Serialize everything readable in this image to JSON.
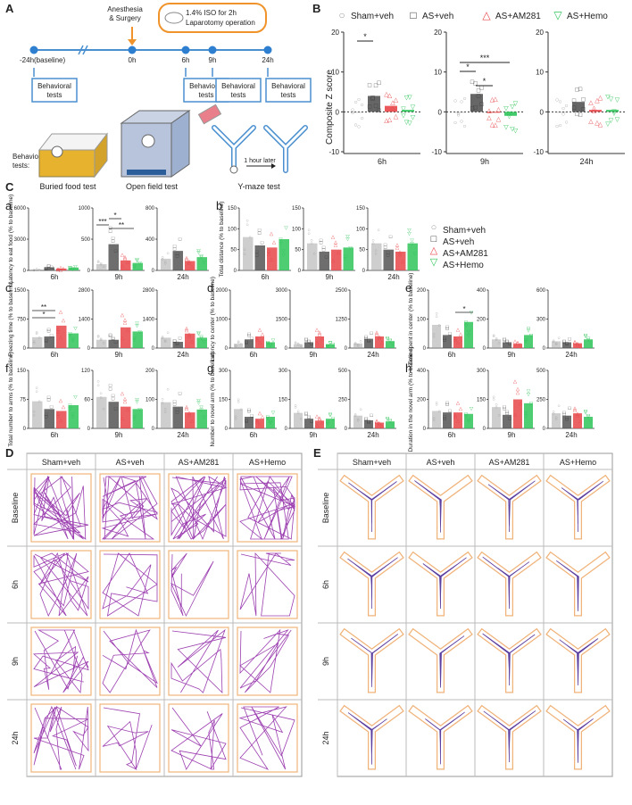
{
  "panel_letters": {
    "A": "A",
    "B": "B",
    "C": "C",
    "D": "D",
    "E": "E"
  },
  "timeline": {
    "points": [
      "-24h(baseline)",
      "0h",
      "6h",
      "9h",
      "24h"
    ],
    "anesthesia_label": "Anesthesia\n& Surgery",
    "iso_box": "1.4% ISO for 2h\nLaparotomy operation",
    "behavioral_tests": "Behavioral\ntests",
    "tests_label": "Behavioral\ntests:",
    "tests": [
      "Buried food test",
      "Open field test",
      "Y-maze test"
    ],
    "hour_later": "1 hour later"
  },
  "legend": {
    "groups": [
      "Sham+veh",
      "AS+veh",
      "AS+AM281",
      "AS+Hemo"
    ],
    "colors": [
      "#9e9e9e",
      "#444444",
      "#e8464a",
      "#2fc45a"
    ],
    "symbols": [
      "○",
      "□",
      "△",
      "▽"
    ]
  },
  "subpanel_letters": [
    "a",
    "b",
    "c",
    "d",
    "e",
    "f",
    "g",
    "h"
  ],
  "chart_data": [
    {
      "id": "B",
      "type": "bar",
      "ylabel": "Composite Z score",
      "ylim": [
        -10,
        20
      ],
      "yticks": [
        -10,
        0,
        10,
        20
      ],
      "categories": [
        "6h",
        "9h",
        "24h"
      ],
      "series": [
        {
          "name": "Sham+veh",
          "values": [
            0,
            0,
            0
          ]
        },
        {
          "name": "AS+veh",
          "values": [
            4,
            4.5,
            2.5
          ]
        },
        {
          "name": "AS+AM281",
          "values": [
            1.5,
            0,
            0.5
          ]
        },
        {
          "name": "AS+Hemo",
          "values": [
            0.5,
            -1,
            0.5
          ]
        }
      ],
      "sig": [
        {
          "t": "6h",
          "label": "*"
        },
        {
          "t": "9h",
          "label": "*"
        },
        {
          "t": "9h",
          "label": "*"
        },
        {
          "t": "9h",
          "label": "***"
        }
      ]
    },
    {
      "id": "a",
      "type": "bar",
      "ylabel": "Latency to eat food (% to baseline)",
      "categories": [
        "6h",
        "9h",
        "24h"
      ],
      "ylims": [
        [
          0,
          6000
        ],
        [
          0,
          1000
        ],
        [
          0,
          800
        ]
      ],
      "series": [
        {
          "name": "Sham+veh",
          "values": [
            80,
            100,
            150
          ]
        },
        {
          "name": "AS+veh",
          "values": [
            300,
            420,
            250
          ]
        },
        {
          "name": "AS+AM281",
          "values": [
            180,
            160,
            120
          ]
        },
        {
          "name": "AS+Hemo",
          "values": [
            280,
            120,
            170
          ]
        }
      ],
      "sig": [
        {
          "t": "9h",
          "label": "***"
        },
        {
          "t": "9h",
          "label": "*"
        },
        {
          "t": "9h",
          "label": "**"
        }
      ]
    },
    {
      "id": "b",
      "type": "bar",
      "ylabel": "Total distance (% to baseline)",
      "categories": [
        "6h",
        "9h",
        "24h"
      ],
      "ylim": [
        0,
        150
      ],
      "yticks": [
        0,
        50,
        100,
        150
      ],
      "series": [
        {
          "name": "Sham+veh",
          "values": [
            80,
            65,
            65
          ]
        },
        {
          "name": "AS+veh",
          "values": [
            60,
            45,
            50
          ]
        },
        {
          "name": "AS+AM281",
          "values": [
            55,
            50,
            45
          ]
        },
        {
          "name": "AS+Hemo",
          "values": [
            75,
            55,
            65
          ]
        }
      ]
    },
    {
      "id": "c",
      "type": "bar",
      "ylabel": "Freezing time (% to baseline)",
      "categories": [
        "6h",
        "9h",
        "24h"
      ],
      "ylims": [
        [
          0,
          1500
        ],
        [
          0,
          2800
        ],
        [
          0,
          2800
        ]
      ],
      "series": [
        {
          "name": "Sham+veh",
          "values": [
            280,
            400,
            500
          ]
        },
        {
          "name": "AS+veh",
          "values": [
            300,
            400,
            300
          ]
        },
        {
          "name": "AS+AM281",
          "values": [
            580,
            1000,
            700
          ]
        },
        {
          "name": "AS+Hemo",
          "values": [
            380,
            800,
            500
          ]
        }
      ],
      "sig": [
        {
          "t": "6h",
          "label": "**"
        },
        {
          "t": "6h",
          "label": "*"
        }
      ]
    },
    {
      "id": "d",
      "type": "bar",
      "ylabel": "Latency to center (% to baseline)",
      "categories": [
        "6h",
        "9h",
        "24h"
      ],
      "ylims": [
        [
          0,
          2000
        ],
        [
          0,
          3000
        ],
        [
          0,
          2500
        ]
      ],
      "series": [
        {
          "name": "Sham+veh",
          "values": [
            150,
            200,
            200
          ]
        },
        {
          "name": "AS+veh",
          "values": [
            300,
            300,
            400
          ]
        },
        {
          "name": "AS+AM281",
          "values": [
            400,
            600,
            500
          ]
        },
        {
          "name": "AS+Hemo",
          "values": [
            200,
            200,
            300
          ]
        }
      ]
    },
    {
      "id": "e",
      "type": "bar",
      "ylabel": "Time spent in center (% to baseline)",
      "categories": [
        "6h",
        "9h",
        "24h"
      ],
      "ylims": [
        [
          0,
          200
        ],
        [
          0,
          400
        ],
        [
          0,
          600
        ]
      ],
      "series": [
        {
          "name": "Sham+veh",
          "values": [
            80,
            60,
            70
          ]
        },
        {
          "name": "AS+veh",
          "values": [
            45,
            40,
            60
          ]
        },
        {
          "name": "AS+AM281",
          "values": [
            40,
            30,
            50
          ]
        },
        {
          "name": "AS+Hemo",
          "values": [
            90,
            90,
            90
          ]
        }
      ],
      "sig": [
        {
          "t": "6h",
          "label": "*"
        }
      ]
    },
    {
      "id": "f",
      "type": "bar",
      "ylabel": "Total number to arms (% to baseline)",
      "categories": [
        "6h",
        "9h",
        "24h"
      ],
      "ylims": [
        [
          0,
          150
        ],
        [
          0,
          120
        ],
        [
          0,
          200
        ]
      ],
      "series": [
        {
          "name": "Sham+veh",
          "values": [
            70,
            65,
            90
          ]
        },
        {
          "name": "AS+veh",
          "values": [
            50,
            55,
            75
          ]
        },
        {
          "name": "AS+AM281",
          "values": [
            45,
            45,
            55
          ]
        },
        {
          "name": "AS+Hemo",
          "values": [
            60,
            40,
            65
          ]
        }
      ]
    },
    {
      "id": "g",
      "type": "bar",
      "ylabel": "Number to novel arm (% to baseline)",
      "categories": [
        "6h",
        "9h",
        "24h"
      ],
      "ylims": [
        [
          0,
          300
        ],
        [
          0,
          300
        ],
        [
          0,
          500
        ]
      ],
      "series": [
        {
          "name": "Sham+veh",
          "values": [
            100,
            80,
            110
          ]
        },
        {
          "name": "AS+veh",
          "values": [
            60,
            50,
            70
          ]
        },
        {
          "name": "AS+AM281",
          "values": [
            50,
            40,
            50
          ]
        },
        {
          "name": "AS+Hemo",
          "values": [
            60,
            50,
            60
          ]
        }
      ]
    },
    {
      "id": "h",
      "type": "bar",
      "ylabel": "Duration in the novel arm (% to baseline)",
      "categories": [
        "6h",
        "9h",
        "24h"
      ],
      "ylims": [
        [
          0,
          400
        ],
        [
          0,
          300
        ],
        [
          0,
          500
        ]
      ],
      "series": [
        {
          "name": "Sham+veh",
          "values": [
            120,
            110,
            130
          ]
        },
        {
          "name": "AS+veh",
          "values": [
            110,
            70,
            110
          ]
        },
        {
          "name": "AS+AM281",
          "values": [
            110,
            150,
            130
          ]
        },
        {
          "name": "AS+Hemo",
          "values": [
            100,
            130,
            100
          ]
        }
      ]
    }
  ],
  "tracks": {
    "columns": [
      "Sham+veh",
      "AS+veh",
      "AS+AM281",
      "AS+Hemo"
    ],
    "rows": [
      "Baseline",
      "6h",
      "9h",
      "24h"
    ],
    "of_color": "#9c3fb0",
    "ym_color": "#5b3fa0",
    "box_color": "#f0b37a"
  }
}
